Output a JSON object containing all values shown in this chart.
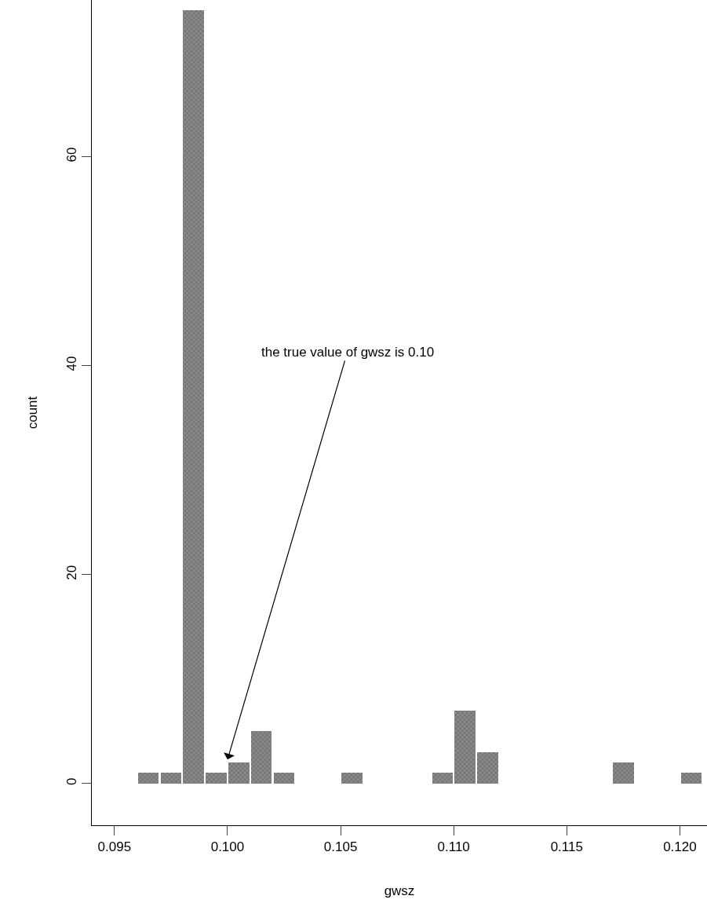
{
  "chart_data": {
    "type": "histogram",
    "xlabel": "gwsz",
    "ylabel": "count",
    "bins": [
      0.096,
      0.097,
      0.098,
      0.099,
      0.1,
      0.101,
      0.102,
      0.103,
      0.104,
      0.105,
      0.106,
      0.107,
      0.108,
      0.109,
      0.11,
      0.111,
      0.112,
      0.113,
      0.114,
      0.115,
      0.116,
      0.117,
      0.118,
      0.119,
      0.12,
      0.121
    ],
    "values": [
      1,
      1,
      74,
      1,
      2,
      5,
      1,
      0,
      0,
      1,
      0,
      0,
      0,
      1,
      7,
      3,
      0,
      0,
      0,
      0,
      0,
      2,
      0,
      0,
      1
    ],
    "color": "#8a8a8a",
    "xlim": [
      0.094,
      0.1212
    ],
    "ylim": [
      -4,
      75
    ],
    "xticks": [
      {
        "value": 0.095,
        "label": "0.095"
      },
      {
        "value": 0.1,
        "label": "0.100"
      },
      {
        "value": 0.105,
        "label": "0.105"
      },
      {
        "value": 0.11,
        "label": "0.110"
      },
      {
        "value": 0.115,
        "label": "0.115"
      },
      {
        "value": 0.12,
        "label": "0.120"
      }
    ],
    "yticks": [
      0,
      20,
      40,
      60
    ],
    "annotations": [
      {
        "text": "the true value of gwsz is 0.10",
        "x": 0.1,
        "y": 2.3
      }
    ]
  }
}
